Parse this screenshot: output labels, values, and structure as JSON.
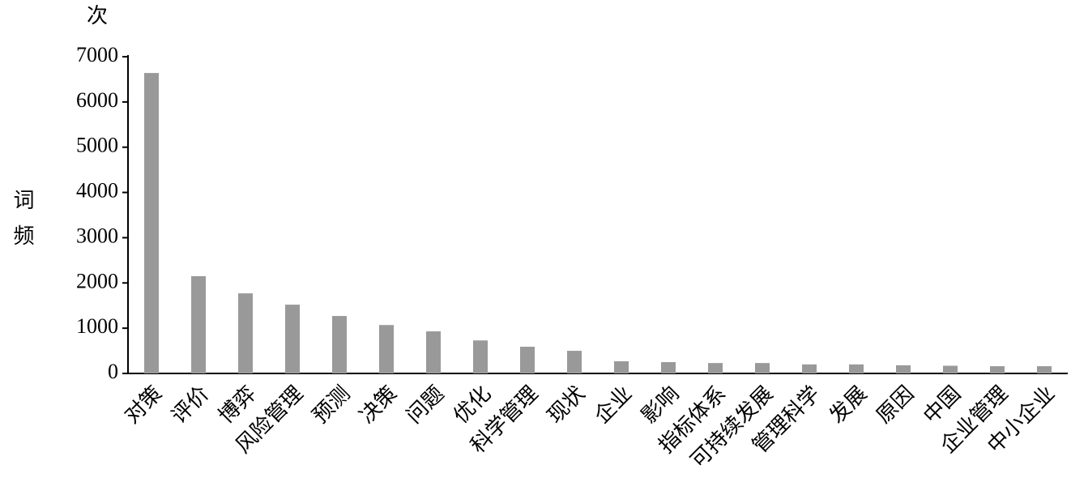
{
  "chart_data": {
    "type": "bar",
    "y_label": "词频",
    "y_unit": "次",
    "categories": [
      "对策",
      "评价",
      "博弈",
      "风险管理",
      "预测",
      "决策",
      "问题",
      "优化",
      "科学管理",
      "现状",
      "企业",
      "影响",
      "指标体系",
      "可持续发展",
      "管理科学",
      "发展",
      "原因",
      "中国",
      "企业管理",
      "中小企业"
    ],
    "values": [
      6640,
      2150,
      1770,
      1520,
      1270,
      1070,
      930,
      730,
      590,
      500,
      270,
      250,
      230,
      230,
      200,
      200,
      180,
      170,
      160,
      160
    ],
    "color": "#999999",
    "ylim": [
      0,
      7000
    ],
    "yticks": [
      0,
      1000,
      2000,
      3000,
      4000,
      5000,
      6000,
      7000
    ],
    "grid": false
  }
}
